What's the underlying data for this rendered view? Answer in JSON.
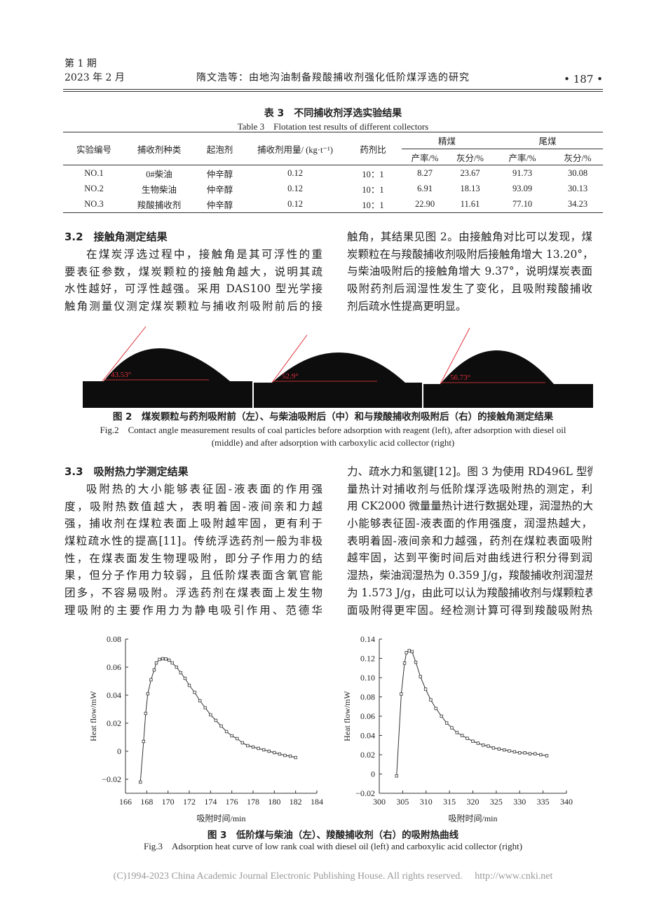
{
  "header": {
    "issue": "第 1 期",
    "date": "2023 年 2 月",
    "running_title": "隋文浩等：由地沟油制备羧酸捕收剂强化低阶煤浮选的研究",
    "page_number": "• 187 •"
  },
  "table3": {
    "title_cn": "表 3　不同捕收剂浮选实验结果",
    "title_en": "Table 3　Flotation test results of different collectors",
    "headers": {
      "id": "实验编号",
      "collector": "捕收剂种类",
      "frother": "起泡剂",
      "dosage": "捕收剂用量/ (kg·t⁻¹)",
      "ratio": "药剂比",
      "concentrate": "精煤",
      "tailings": "尾煤",
      "yield": "产率/%",
      "ash": "灰分/%"
    },
    "rows": [
      [
        "NO.1",
        "0#柴油",
        "仲辛醇",
        "0.12",
        "10：1",
        "8.27",
        "23.67",
        "91.73",
        "30.08"
      ],
      [
        "NO.2",
        "生物柴油",
        "仲辛醇",
        "0.12",
        "10：1",
        "6.91",
        "18.13",
        "93.09",
        "30.13"
      ],
      [
        "NO.3",
        "羧酸捕收剂",
        "仲辛醇",
        "0.12",
        "10：1",
        "22.90",
        "11.61",
        "77.10",
        "34.23"
      ]
    ]
  },
  "section32": {
    "heading": "3.2　接触角测定结果",
    "left_lines": [
      "在煤炭浮选过程中，接触角是其可浮性的重",
      "要表征参数，煤炭颗粒的接触角越大，说明其疏",
      "水性越好，可浮性越强。采用 DAS100 型光学接",
      "触角测量仪测定煤炭颗粒与捕收剂吸附前后的接"
    ],
    "right_lines": [
      "触角，其结果见图 2。由接触角对比可以发现，煤",
      "炭颗粒在与羧酸捕收剂吸附后接触角增大 13.20°，",
      "与柴油吸附后的接触角增大 9.37°，说明煤炭表面",
      "吸附药剂后润湿性发生了变化，且吸附羧酸捕收",
      "剂后疏水性提高更明显。"
    ]
  },
  "figure2": {
    "angles": [
      "43.53°",
      "52.9°",
      "56.73°"
    ],
    "caption_cn": "图 2　煤炭颗粒与药剂吸附前（左）、与柴油吸附后（中）和与羧酸捕收剂吸附后（右）的接触角测定结果",
    "caption_en_1": "Fig.2　Contact angle measurement results of coal particles before adsorption with reagent (left), after adsorption with diesel oil",
    "caption_en_2": "(middle) and after adsorption with carboxylic acid collector (right)"
  },
  "section33": {
    "heading": "3.3　吸附热力学测定结果",
    "left_lines": [
      "吸附热的大小能够表征固-液表面的作用强",
      "度，吸附热数值越大，表明着固-液间亲和力越",
      "强，捕收剂在煤粒表面上吸附越牢固，更有利于",
      "煤粒疏水性的提高[11]。传统浮选药剂一般为非极",
      "性，在煤表面发生物理吸附，即分子作用力的结",
      "果，但分子作用力较弱，且低阶煤表面含氧官能",
      "团多，不容易吸附。浮选药剂在煤表面上发生物",
      "理吸附的主要作用力为静电吸引作用、范德华"
    ],
    "right_lines": [
      "力、疏水力和氢键[12]。图 3 为使用 RD496L 型微",
      "量热计对捕收剂与低阶煤浮选吸附热的测定，利",
      "用 CK2000 微量量热计进行数据处理，润湿热的大",
      "小能够表征固-液表面的作用强度，润湿热越大，",
      "表明着固-液间亲和力越强，药剂在煤粒表面吸附",
      "越牢固，达到平衡时间后对曲线进行积分得到润",
      "湿热，柴油润湿热为 0.359 J/g，羧酸捕收剂润湿热",
      "为 1.573 J/g，由此可以认为羧酸捕收剂与煤颗粒表",
      "面吸附得更牢固。经检测计算可得到羧酸吸附热"
    ]
  },
  "figure3": {
    "caption_cn": "图 3　低阶煤与柴油（左）、羧酸捕收剂（右）的吸附热曲线",
    "caption_en": "Fig.3　Adsorption heat curve of low rank coal with diesel oil (left) and carboxylic acid collector (right)"
  },
  "chart_data": [
    {
      "type": "line",
      "xlabel": "吸附时间/min",
      "ylabel": "Heat flow/mW",
      "xlim": [
        166,
        184
      ],
      "ylim": [
        -0.03,
        0.08
      ],
      "xticks": [
        "166",
        "168",
        "170",
        "172",
        "174",
        "176",
        "178",
        "180",
        "182",
        "184"
      ],
      "yticks": [
        "−0.02",
        "0",
        "0.02",
        "0.04",
        "0.06",
        "0.08"
      ],
      "ytick_values": [
        -0.02,
        0,
        0.02,
        0.04,
        0.06,
        0.08
      ],
      "grid": false,
      "markers": "square",
      "color": "#333333",
      "x": [
        167.4,
        167.7,
        167.9,
        168.1,
        168.4,
        168.7,
        168.9,
        169.2,
        169.5,
        169.8,
        170.1,
        170.4,
        170.8,
        171.2,
        171.6,
        172.0,
        172.5,
        173.0,
        173.5,
        174.0,
        174.5,
        175.0,
        175.5,
        176.0,
        176.5,
        177.0,
        177.5,
        178.0,
        178.5,
        179.0,
        179.5,
        180.0,
        180.5,
        181.0,
        181.5,
        182.0
      ],
      "y": [
        -0.022,
        0.007,
        0.027,
        0.041,
        0.051,
        0.058,
        0.063,
        0.0655,
        0.066,
        0.0658,
        0.065,
        0.063,
        0.06,
        0.056,
        0.052,
        0.047,
        0.042,
        0.036,
        0.031,
        0.026,
        0.022,
        0.018,
        0.014,
        0.011,
        0.009,
        0.006,
        0.004,
        0.003,
        0.002,
        0.001,
        0.0,
        -0.001,
        -0.002,
        -0.003,
        -0.0035,
        -0.0045
      ]
    },
    {
      "type": "line",
      "xlabel": "吸附时间/min",
      "ylabel": "Heat flow/mW",
      "xlim": [
        300,
        340
      ],
      "ylim": [
        -0.02,
        0.14
      ],
      "xticks": [
        "300",
        "305",
        "310",
        "315",
        "320",
        "325",
        "330",
        "335",
        "340"
      ],
      "yticks": [
        "−0.02",
        "0",
        "0.02",
        "0.04",
        "0.06",
        "0.08",
        "0.10",
        "0.12",
        "0.14"
      ],
      "ytick_values": [
        -0.02,
        0,
        0.02,
        0.04,
        0.06,
        0.08,
        0.1,
        0.12,
        0.14
      ],
      "grid": false,
      "markers": "square",
      "color": "#333333",
      "x": [
        303.7,
        304.7,
        305.4,
        305.8,
        306.4,
        307.0,
        307.8,
        308.8,
        309.9,
        311.0,
        312.1,
        313.3,
        314.4,
        315.5,
        316.6,
        317.7,
        318.8,
        320.0,
        321.1,
        322.2,
        323.3,
        324.4,
        325.6,
        326.7,
        327.8,
        328.9,
        330.0,
        331.1,
        332.2,
        333.3,
        334.5,
        335.8
      ],
      "y": [
        -0.002,
        0.083,
        0.115,
        0.126,
        0.128,
        0.127,
        0.116,
        0.101,
        0.088,
        0.077,
        0.068,
        0.06,
        0.053,
        0.048,
        0.043,
        0.04,
        0.037,
        0.034,
        0.032,
        0.03,
        0.029,
        0.027,
        0.026,
        0.025,
        0.024,
        0.023,
        0.022,
        0.022,
        0.021,
        0.021,
        0.02,
        0.019
      ]
    }
  ],
  "footer": {
    "copyright": "(C)1994-2023 China Academic Journal Electronic Publishing House. All rights reserved.",
    "url": "http://www.cnki.net"
  }
}
